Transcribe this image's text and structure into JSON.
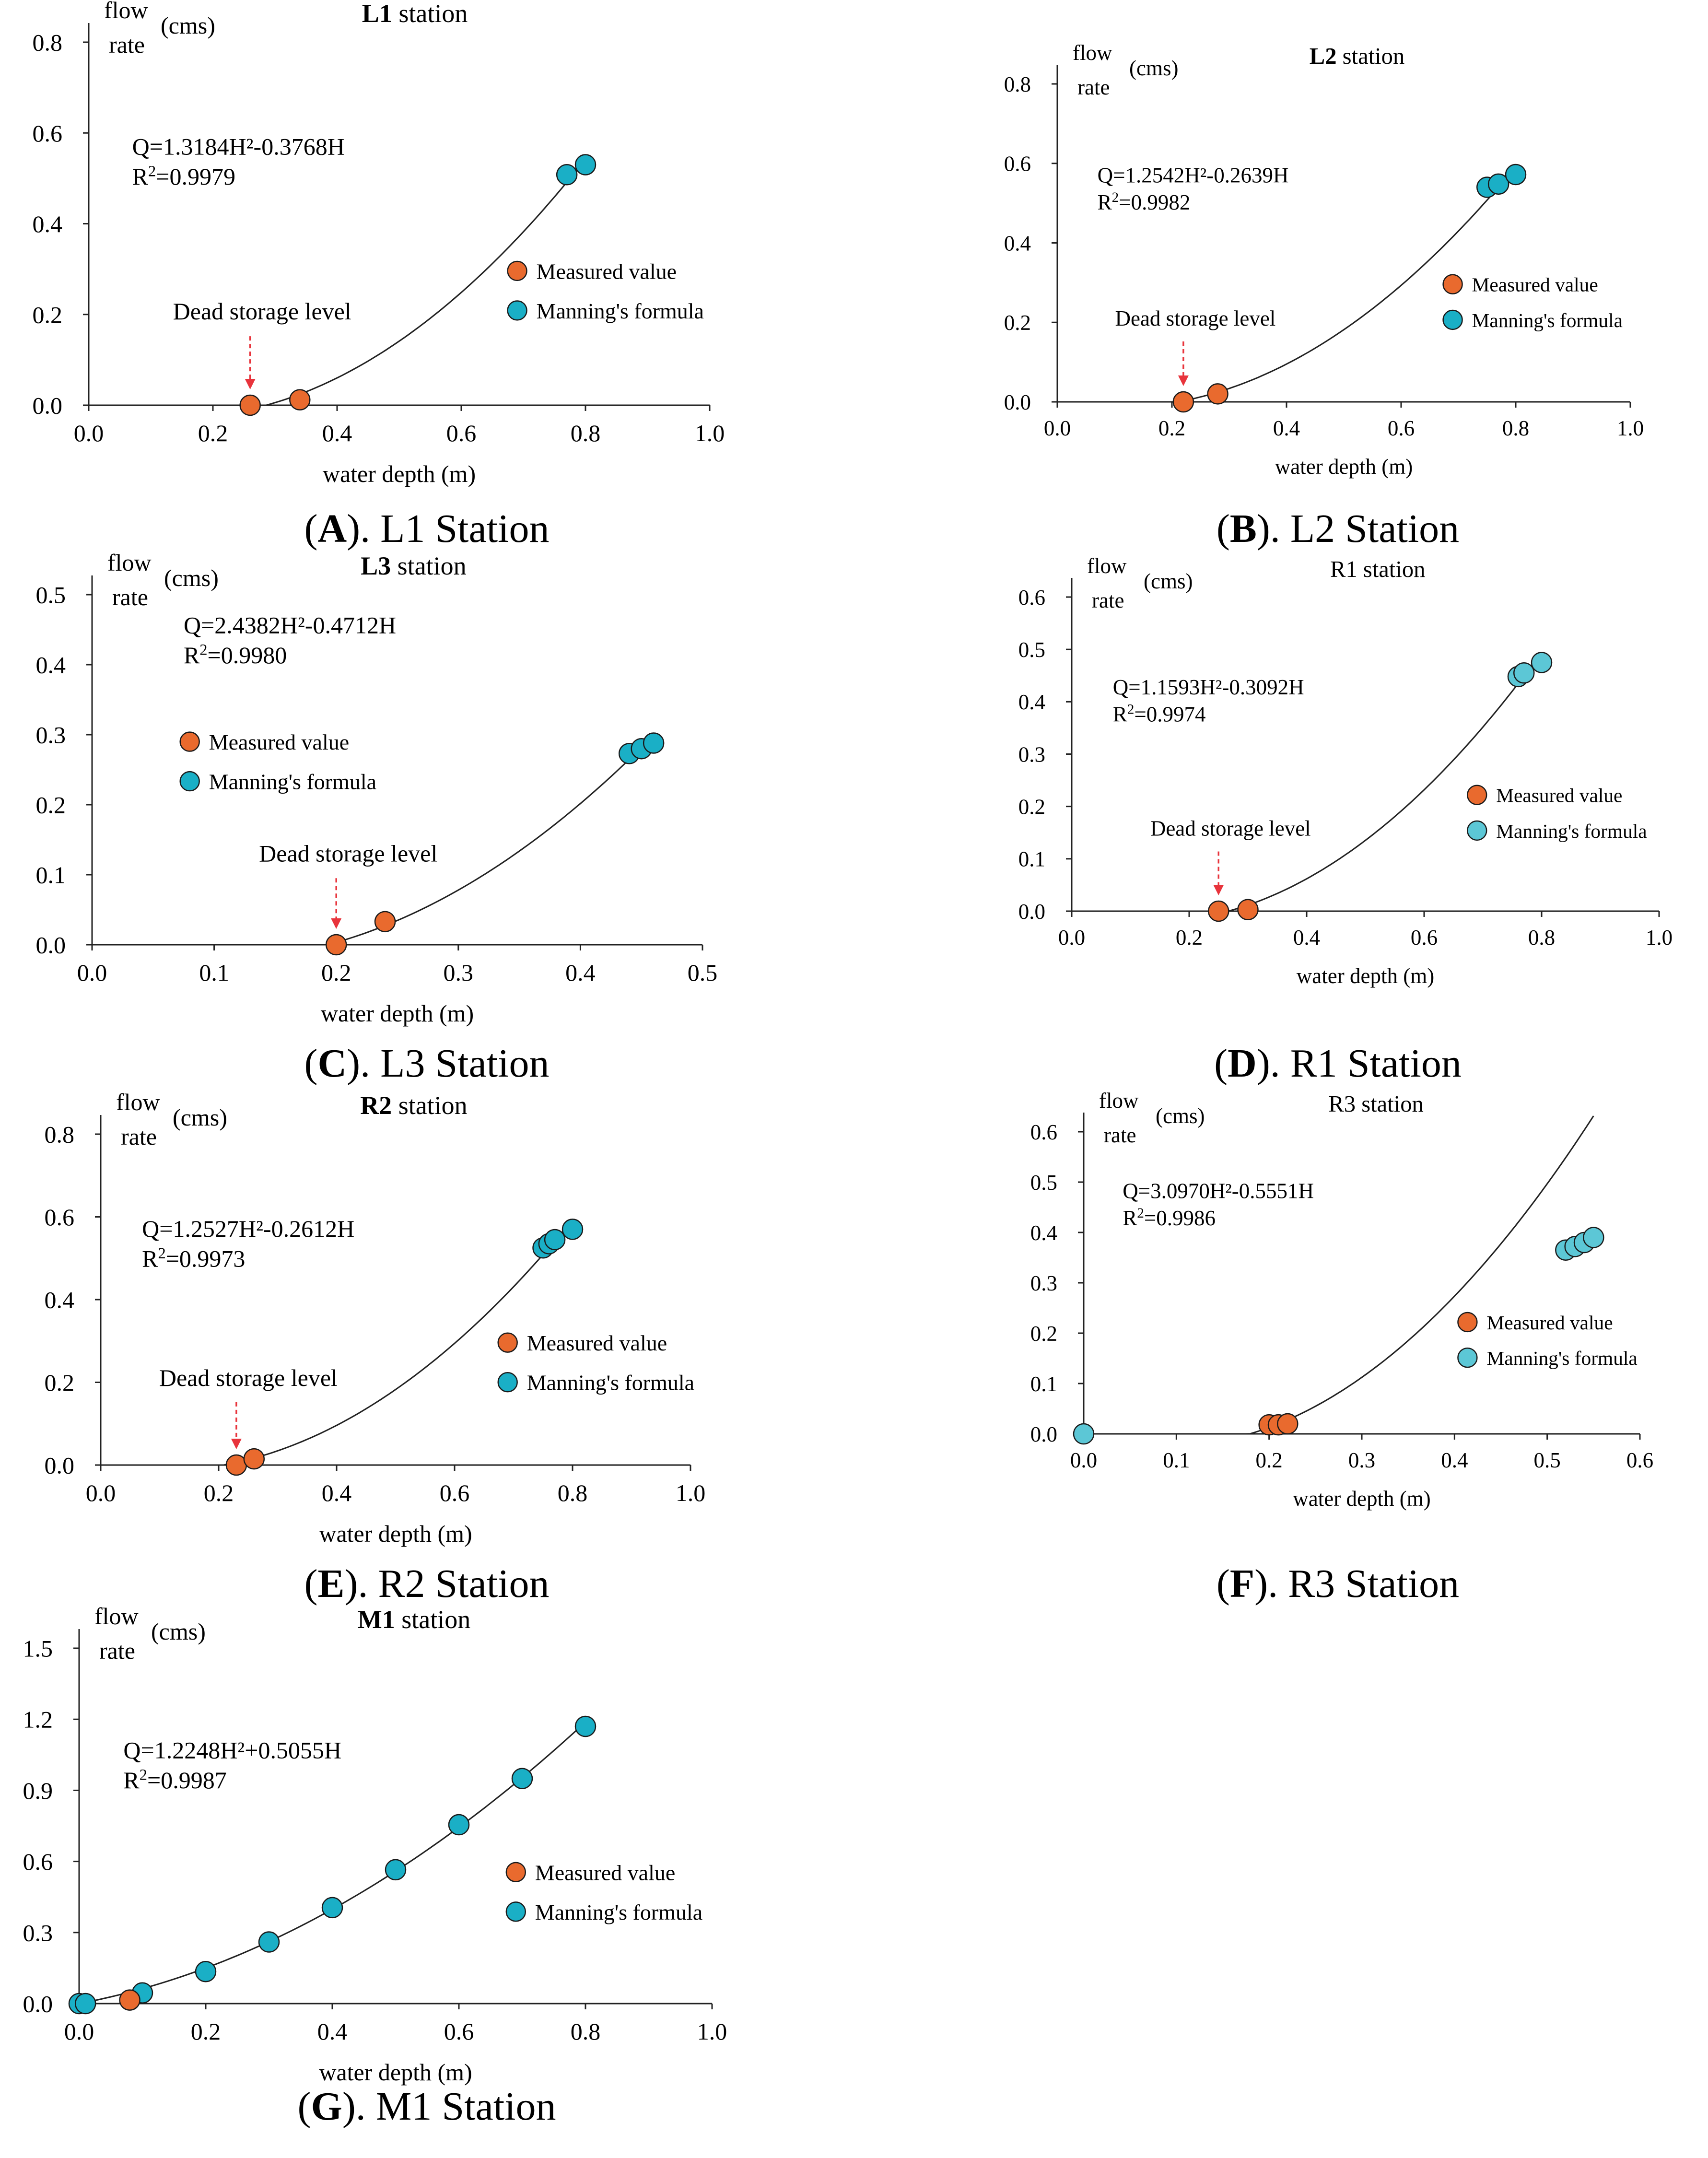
{
  "figure": {
    "colors": {
      "measured": "#E96A2E",
      "manning": "#1AAFC6",
      "manning_light": "#5CC7D6",
      "arrow": "#E8343C",
      "axis": "#222222"
    },
    "labels": {
      "flow": "flow",
      "rate": "rate",
      "unit": "(cms)",
      "xlabel_m": "water depth (m)",
      "xlabel_plain": "water depth (m)"
    }
  },
  "chart_data": [
    {
      "id": "A",
      "panel_letter": "A",
      "caption_text": "). L1 Station",
      "type": "scatter",
      "title_bold": "L1",
      "title_rest": " station",
      "xlim": [
        0,
        1.0
      ],
      "xticks": [
        "0.0",
        "0.2",
        "0.4",
        "0.6",
        "0.8",
        "1.0"
      ],
      "ylim": [
        0,
        0.8
      ],
      "yticks": [
        "0.0",
        "0.2",
        "0.4",
        "0.6",
        "0.8"
      ],
      "equation": "Q=1.3184H²-0.3768H",
      "r2_prefix": "R",
      "r2_value": "=0.9979",
      "fit": {
        "a": 1.3184,
        "b": -0.3768,
        "x_start": 0.286,
        "x_end": 0.8
      },
      "dead_storage": {
        "label": "Dead storage level",
        "x": 0.26
      },
      "legend": [
        "Measured value",
        "Manning's formula"
      ],
      "legend_position": "right",
      "measured": [
        [
          0.26,
          0.0
        ],
        [
          0.34,
          0.012
        ]
      ],
      "manning": [
        [
          0.77,
          0.508
        ],
        [
          0.8,
          0.53
        ]
      ]
    },
    {
      "id": "B",
      "panel_letter": "B",
      "caption_text": "). L2 Station",
      "type": "scatter",
      "title_bold": "L2",
      "title_rest": " station",
      "xlim": [
        0,
        1.0
      ],
      "xticks": [
        "0.0",
        "0.2",
        "0.4",
        "0.6",
        "0.8",
        "1.0"
      ],
      "ylim": [
        0,
        0.8
      ],
      "yticks": [
        "0.0",
        "0.2",
        "0.4",
        "0.6",
        "0.8"
      ],
      "equation": "Q=1.2542H²-0.2639H",
      "r2_prefix": "R",
      "r2_value": "=0.9982",
      "fit": {
        "a": 1.2542,
        "b": -0.2639,
        "x_start": 0.21,
        "x_end": 0.8
      },
      "dead_storage": {
        "label": "Dead storage level",
        "x": 0.22
      },
      "legend": [
        "Measured value",
        "Manning's formula"
      ],
      "legend_position": "right",
      "measured": [
        [
          0.22,
          0.0
        ],
        [
          0.28,
          0.02
        ]
      ],
      "manning": [
        [
          0.75,
          0.54
        ],
        [
          0.77,
          0.548
        ],
        [
          0.8,
          0.572
        ]
      ]
    },
    {
      "id": "C",
      "panel_letter": "C",
      "caption_text": "). L3 Station",
      "type": "scatter",
      "title_bold": "L3",
      "title_rest": " station",
      "xlim": [
        0,
        0.5
      ],
      "xticks": [
        "0.0",
        "0.1",
        "0.2",
        "0.3",
        "0.4",
        "0.5"
      ],
      "ylim": [
        0,
        0.5
      ],
      "yticks": [
        "0.0",
        "0.1",
        "0.2",
        "0.3",
        "0.4",
        "0.5"
      ],
      "equation": "Q=2.4382H²-0.4712H",
      "r2_prefix": "R",
      "r2_value": "=0.9980",
      "fit": {
        "a": 2.4382,
        "b": -0.4712,
        "x_start": 0.193,
        "x_end": 0.46
      },
      "dead_storage": {
        "label": "Dead storage level",
        "x": 0.2
      },
      "legend": [
        "Measured value",
        "Manning's formula"
      ],
      "legend_position": "upper-left",
      "measured": [
        [
          0.2,
          0.0
        ],
        [
          0.24,
          0.033
        ]
      ],
      "manning": [
        [
          0.44,
          0.273
        ],
        [
          0.45,
          0.28
        ],
        [
          0.46,
          0.288
        ]
      ]
    },
    {
      "id": "D",
      "panel_letter": "D",
      "caption_text": "). R1 Station",
      "type": "scatter",
      "title_bold": "",
      "title_rest": "R1 station",
      "xlim": [
        0,
        1.0
      ],
      "xticks": [
        "0.0",
        "0.2",
        "0.4",
        "0.6",
        "0.8",
        "1.0"
      ],
      "ylim": [
        0,
        0.6
      ],
      "yticks": [
        "0.0",
        "0.1",
        "0.2",
        "0.3",
        "0.4",
        "0.5",
        "0.6"
      ],
      "equation": "Q=1.1593H²-0.3092H",
      "r2_prefix": "R",
      "r2_value": "=0.9974",
      "fit": {
        "a": 1.1593,
        "b": -0.3092,
        "x_start": 0.267,
        "x_end": 0.8
      },
      "dead_storage": {
        "label": "Dead storage level",
        "x": 0.25
      },
      "legend": [
        "Measured value",
        "Manning's formula"
      ],
      "legend_position": "right",
      "manning_light": true,
      "measured": [
        [
          0.25,
          0.0
        ],
        [
          0.3,
          0.003
        ]
      ],
      "manning": [
        [
          0.76,
          0.448
        ],
        [
          0.77,
          0.455
        ],
        [
          0.8,
          0.475
        ]
      ]
    },
    {
      "id": "E",
      "panel_letter": "E",
      "caption_text": "). R2 Station",
      "type": "scatter",
      "title_bold": "R2",
      "title_rest": " station",
      "xlim": [
        0,
        1.0
      ],
      "xticks": [
        "0.0",
        "0.2",
        "0.4",
        "0.6",
        "0.8",
        "1.0"
      ],
      "ylim": [
        0,
        0.8
      ],
      "yticks": [
        "0.0",
        "0.2",
        "0.4",
        "0.6",
        "0.8"
      ],
      "equation": "Q=1.2527H²-0.2612H",
      "r2_prefix": "R",
      "r2_value": "=0.9973",
      "fit": {
        "a": 1.2527,
        "b": -0.2612,
        "x_start": 0.209,
        "x_end": 0.8
      },
      "dead_storage": {
        "label": "Dead storage level",
        "x": 0.23
      },
      "legend": [
        "Measured value",
        "Manning's formula"
      ],
      "legend_position": "right",
      "measured": [
        [
          0.23,
          0.0
        ],
        [
          0.26,
          0.015
        ]
      ],
      "manning": [
        [
          0.75,
          0.525
        ],
        [
          0.76,
          0.535
        ],
        [
          0.77,
          0.545
        ],
        [
          0.8,
          0.57
        ]
      ]
    },
    {
      "id": "F",
      "panel_letter": "F",
      "caption_text": "). R3 Station",
      "type": "scatter",
      "title_bold": "",
      "title_rest": "R3 station",
      "xlim": [
        0,
        0.6
      ],
      "xticks": [
        "0.0",
        "0.1",
        "0.2",
        "0.3",
        "0.4",
        "0.5",
        "0.6"
      ],
      "ylim": [
        0,
        0.6
      ],
      "yticks": [
        "0.0",
        "0.1",
        "0.2",
        "0.3",
        "0.4",
        "0.5",
        "0.6"
      ],
      "equation": "Q=3.0970H²-0.5551H",
      "r2_prefix": "R",
      "r2_value": "=0.9986",
      "fit": {
        "a": 3.097,
        "b": -0.5551,
        "x_start": 0.175,
        "x_end": 0.55
      },
      "dead_storage": null,
      "legend": [
        "Measured value",
        "Manning's formula"
      ],
      "legend_position": "right",
      "manning_light": true,
      "measured": [
        [
          0.2,
          0.018
        ],
        [
          0.21,
          0.018
        ],
        [
          0.22,
          0.02
        ]
      ],
      "manning": [
        [
          0.0,
          0.0
        ],
        [
          0.52,
          0.365
        ],
        [
          0.53,
          0.372
        ],
        [
          0.54,
          0.38
        ],
        [
          0.55,
          0.39
        ]
      ]
    },
    {
      "id": "G",
      "panel_letter": "G",
      "caption_text": "). M1 Station",
      "type": "scatter",
      "title_bold": "M1",
      "title_rest": " station",
      "xlim": [
        0,
        1.0
      ],
      "xticks": [
        "0.0",
        "0.2",
        "0.4",
        "0.6",
        "0.8",
        "1.0"
      ],
      "ylim": [
        0,
        1.5
      ],
      "yticks": [
        "0.0",
        "0.3",
        "0.6",
        "0.9",
        "1.2",
        "1.5"
      ],
      "equation": "Q=1.2248H²+0.5055H",
      "r2_prefix": "R",
      "r2_value": "=0.9987",
      "fit": {
        "a": 1.2248,
        "b": 0.5055,
        "x_start": 0.0,
        "x_end": 0.8
      },
      "dead_storage": null,
      "legend": [
        "Measured value",
        "Manning's formula"
      ],
      "legend_position": "right",
      "measured": [
        [
          0.08,
          0.015
        ]
      ],
      "manning": [
        [
          0.0,
          0.0
        ],
        [
          0.01,
          0.0
        ],
        [
          0.1,
          0.045
        ],
        [
          0.2,
          0.135
        ],
        [
          0.3,
          0.26
        ],
        [
          0.4,
          0.405
        ],
        [
          0.5,
          0.565
        ],
        [
          0.6,
          0.755
        ],
        [
          0.7,
          0.95
        ],
        [
          0.8,
          1.17
        ]
      ]
    }
  ]
}
